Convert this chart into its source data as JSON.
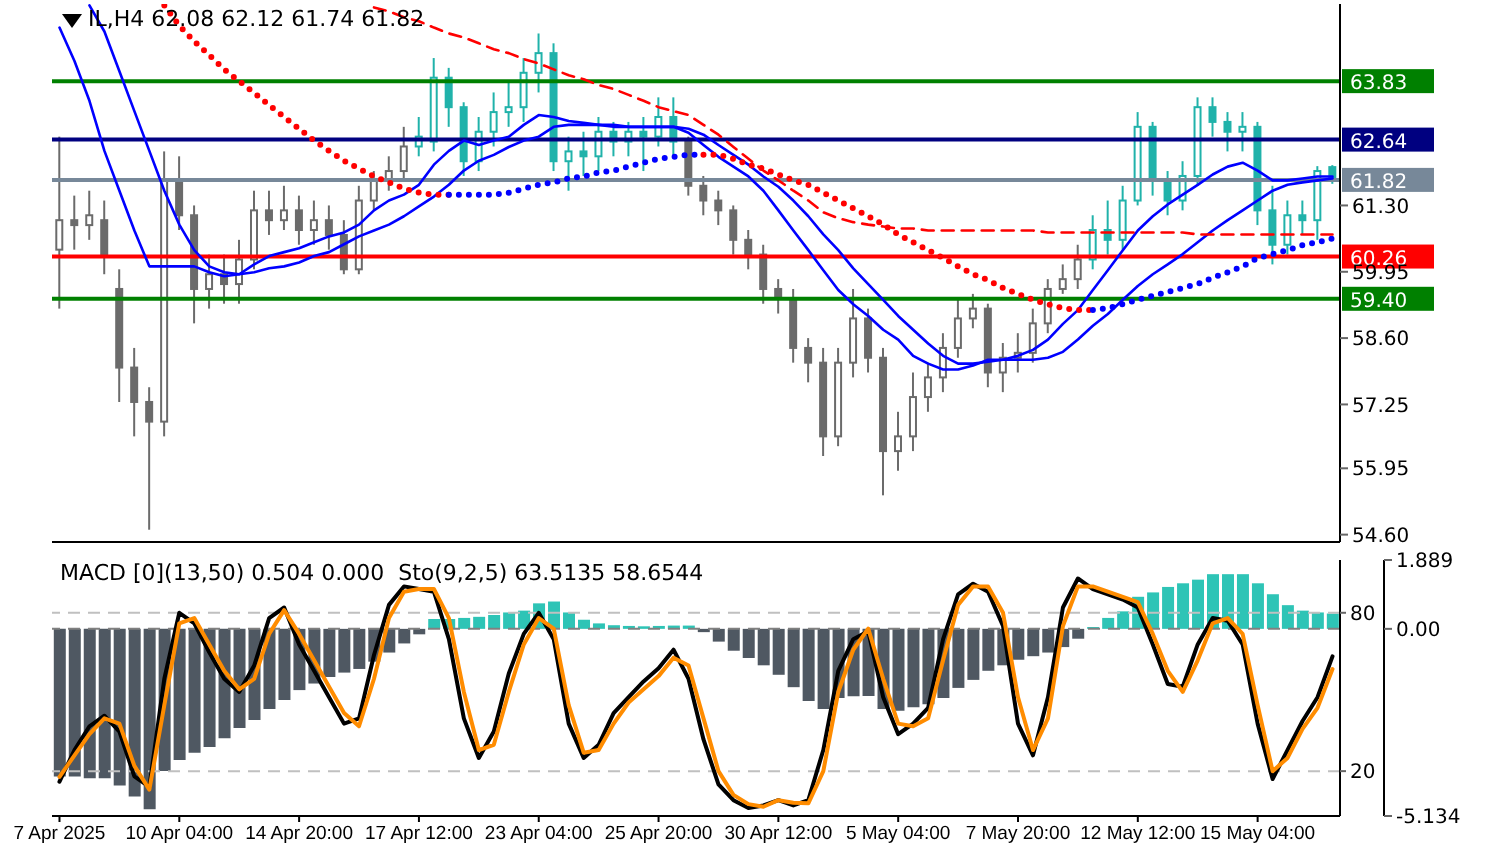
{
  "chart_data": [
    {
      "type": "candlestick",
      "title": "IL,H4 62.08 62.12 61.74 61.82",
      "categories": [
        null,
        null,
        null,
        null,
        null,
        null,
        null,
        null,
        null,
        null,
        null,
        null,
        null,
        null,
        null,
        null,
        null,
        null,
        null,
        null,
        null,
        null,
        null,
        null,
        null,
        null,
        null,
        null,
        null,
        null,
        null,
        null,
        null,
        null,
        null,
        null,
        null,
        null,
        null,
        null,
        null,
        null,
        null,
        null,
        null,
        null,
        null,
        null,
        null,
        null,
        null,
        null,
        null,
        null,
        null,
        null,
        null,
        null,
        null,
        null,
        null,
        null,
        null,
        null,
        null,
        null,
        null,
        null,
        null,
        null,
        null,
        null,
        null,
        null,
        null,
        null,
        null,
        null,
        null,
        null,
        null,
        null,
        null,
        null,
        null,
        null
      ],
      "ohlc": [
        [
          60.4,
          62.7,
          59.2,
          61.0
        ],
        [
          61.0,
          61.5,
          60.4,
          60.9
        ],
        [
          60.9,
          61.6,
          60.6,
          61.1
        ],
        [
          61.0,
          61.4,
          59.9,
          60.3
        ],
        [
          59.6,
          60.0,
          57.3,
          58.0
        ],
        [
          58.0,
          58.4,
          56.6,
          57.3
        ],
        [
          57.3,
          57.6,
          54.7,
          56.9
        ],
        [
          56.9,
          62.4,
          56.6,
          61.8
        ],
        [
          61.8,
          62.3,
          60.8,
          61.1
        ],
        [
          61.1,
          61.3,
          58.9,
          59.6
        ],
        [
          59.6,
          60.3,
          59.2,
          59.9
        ],
        [
          59.9,
          60.3,
          59.3,
          59.7
        ],
        [
          59.7,
          60.6,
          59.3,
          60.2
        ],
        [
          60.2,
          61.6,
          60.0,
          61.2
        ],
        [
          61.2,
          61.6,
          60.7,
          61.0
        ],
        [
          61.0,
          61.7,
          60.8,
          61.2
        ],
        [
          61.2,
          61.5,
          60.5,
          60.8
        ],
        [
          60.8,
          61.4,
          60.5,
          61.0
        ],
        [
          61.0,
          61.3,
          60.4,
          60.7
        ],
        [
          60.7,
          61.0,
          59.9,
          60.0
        ],
        [
          60.0,
          61.7,
          59.9,
          61.4
        ],
        [
          61.4,
          62.0,
          61.2,
          61.8
        ],
        [
          61.8,
          62.3,
          61.6,
          62.0
        ],
        [
          62.0,
          62.9,
          61.8,
          62.5
        ],
        [
          62.5,
          63.1,
          62.3,
          62.7
        ],
        [
          62.6,
          64.3,
          62.4,
          63.9
        ],
        [
          63.9,
          64.1,
          62.9,
          63.3
        ],
        [
          63.3,
          63.4,
          61.9,
          62.2
        ],
        [
          62.2,
          63.1,
          62.0,
          62.8
        ],
        [
          62.8,
          63.6,
          62.5,
          63.2
        ],
        [
          63.2,
          63.8,
          62.9,
          63.3
        ],
        [
          63.3,
          64.3,
          63.0,
          64.0
        ],
        [
          64.0,
          64.8,
          63.6,
          64.4
        ],
        [
          64.4,
          64.6,
          62.0,
          62.2
        ],
        [
          62.2,
          62.7,
          61.6,
          62.4
        ],
        [
          62.4,
          62.8,
          61.9,
          62.3
        ],
        [
          62.3,
          63.1,
          62.0,
          62.8
        ],
        [
          62.8,
          63.0,
          62.3,
          62.6
        ],
        [
          62.6,
          63.0,
          62.3,
          62.8
        ],
        [
          62.8,
          63.1,
          62.0,
          62.7
        ],
        [
          62.7,
          63.5,
          62.5,
          63.1
        ],
        [
          63.1,
          63.5,
          62.3,
          62.6
        ],
        [
          62.6,
          62.7,
          61.5,
          61.7
        ],
        [
          61.7,
          61.9,
          61.1,
          61.4
        ],
        [
          61.4,
          61.6,
          60.9,
          61.2
        ],
        [
          61.2,
          61.3,
          60.3,
          60.6
        ],
        [
          60.6,
          60.8,
          60.0,
          60.3
        ],
        [
          60.3,
          60.5,
          59.3,
          59.6
        ],
        [
          59.6,
          59.8,
          59.1,
          59.4
        ],
        [
          59.4,
          59.6,
          58.1,
          58.4
        ],
        [
          58.4,
          58.6,
          57.7,
          58.1
        ],
        [
          58.1,
          58.4,
          56.2,
          56.6
        ],
        [
          56.6,
          58.4,
          56.4,
          58.1
        ],
        [
          58.1,
          59.6,
          57.8,
          59.0
        ],
        [
          59.0,
          59.2,
          57.9,
          58.2
        ],
        [
          58.2,
          58.4,
          55.4,
          56.3
        ],
        [
          56.3,
          57.1,
          55.9,
          56.6
        ],
        [
          56.6,
          57.9,
          56.3,
          57.4
        ],
        [
          57.4,
          58.1,
          57.1,
          57.8
        ],
        [
          57.8,
          58.7,
          57.5,
          58.4
        ],
        [
          58.4,
          59.4,
          58.2,
          59.0
        ],
        [
          59.0,
          59.5,
          58.8,
          59.2
        ],
        [
          59.2,
          59.3,
          57.6,
          57.9
        ],
        [
          57.9,
          58.5,
          57.5,
          58.2
        ],
        [
          58.2,
          58.7,
          57.9,
          58.3
        ],
        [
          58.3,
          59.2,
          58.1,
          58.9
        ],
        [
          58.9,
          59.8,
          58.7,
          59.6
        ],
        [
          59.6,
          60.1,
          59.5,
          59.8
        ],
        [
          59.8,
          60.5,
          59.6,
          60.2
        ],
        [
          60.2,
          61.1,
          60.0,
          60.8
        ],
        [
          60.8,
          61.4,
          60.3,
          60.6
        ],
        [
          60.6,
          61.7,
          60.4,
          61.4
        ],
        [
          61.4,
          63.2,
          61.3,
          62.9
        ],
        [
          62.9,
          63.0,
          61.5,
          61.8
        ],
        [
          61.8,
          62.0,
          61.1,
          61.4
        ],
        [
          61.4,
          62.2,
          61.2,
          61.9
        ],
        [
          61.9,
          63.5,
          61.7,
          63.3
        ],
        [
          63.3,
          63.5,
          62.7,
          63.0
        ],
        [
          63.0,
          63.2,
          62.4,
          62.8
        ],
        [
          62.8,
          63.2,
          62.4,
          62.9
        ],
        [
          62.9,
          63.0,
          60.9,
          61.2
        ],
        [
          61.2,
          61.7,
          60.1,
          60.5
        ],
        [
          60.5,
          61.4,
          60.3,
          61.1
        ],
        [
          61.1,
          61.4,
          60.7,
          61.0
        ],
        [
          61.0,
          62.1,
          60.6,
          62.0
        ],
        [
          62.08,
          62.12,
          61.74,
          61.82
        ]
      ],
      "colors": [
        "#6b6b6b",
        "#6b6b6b",
        "#6b6b6b",
        "#6b6b6b",
        "#6b6b6b",
        "#6b6b6b",
        "#6b6b6b",
        "#6b6b6b",
        "#6b6b6b",
        "#6b6b6b",
        "#6b6b6b",
        "#6b6b6b",
        "#6b6b6b",
        "#6b6b6b",
        "#6b6b6b",
        "#6b6b6b",
        "#6b6b6b",
        "#6b6b6b",
        "#6b6b6b",
        "#6b6b6b",
        "#6b6b6b",
        "#6b6b6b",
        "#6b6b6b",
        "#6b6b6b",
        "#20b2aa",
        "#20b2aa",
        "#20b2aa",
        "#20b2aa",
        "#20b2aa",
        "#20b2aa",
        "#20b2aa",
        "#20b2aa",
        "#20b2aa",
        "#20b2aa",
        "#20b2aa",
        "#20b2aa",
        "#20b2aa",
        "#20b2aa",
        "#20b2aa",
        "#20b2aa",
        "#20b2aa",
        "#20b2aa",
        "#6b6b6b",
        "#6b6b6b",
        "#6b6b6b",
        "#6b6b6b",
        "#6b6b6b",
        "#6b6b6b",
        "#6b6b6b",
        "#6b6b6b",
        "#6b6b6b",
        "#6b6b6b",
        "#6b6b6b",
        "#6b6b6b",
        "#6b6b6b",
        "#6b6b6b",
        "#6b6b6b",
        "#6b6b6b",
        "#6b6b6b",
        "#6b6b6b",
        "#6b6b6b",
        "#6b6b6b",
        "#6b6b6b",
        "#6b6b6b",
        "#6b6b6b",
        "#6b6b6b",
        "#6b6b6b",
        "#6b6b6b",
        "#6b6b6b",
        "#20b2aa",
        "#20b2aa",
        "#20b2aa",
        "#20b2aa",
        "#20b2aa",
        "#20b2aa",
        "#20b2aa",
        "#20b2aa",
        "#20b2aa",
        "#20b2aa",
        "#20b2aa",
        "#20b2aa",
        "#20b2aa",
        "#20b2aa",
        "#20b2aa",
        "#20b2aa",
        "#20b2aa"
      ],
      "series": [
        {
          "type": "line",
          "color": "#0000ff",
          "values": [
            64.92,
            64.24,
            63.43,
            62.41,
            61.6,
            60.79,
            60.06,
            60.06,
            60.06,
            60.06,
            59.94,
            59.86,
            59.9,
            60.1,
            60.27,
            60.35,
            60.43,
            60.55,
            60.67,
            60.75,
            60.91,
            61.2,
            61.4,
            61.52,
            61.72,
            62.13,
            62.41,
            62.62,
            62.53,
            62.62,
            62.7,
            62.94,
            63.14,
            63.1,
            63.02,
            62.98,
            62.94,
            62.94,
            62.9,
            62.9,
            62.9,
            62.9,
            62.78,
            62.53,
            62.29,
            62.09,
            61.89,
            61.6,
            61.2,
            60.79,
            60.39,
            59.98,
            59.58,
            59.29,
            59.05,
            58.77,
            58.57,
            58.24,
            58.08,
            57.96,
            57.96,
            58.04,
            58.16,
            58.16,
            58.24,
            58.36,
            58.57,
            58.89,
            59.17,
            59.58,
            59.98,
            60.39,
            60.79,
            61.08,
            61.32,
            61.52,
            61.72,
            61.93,
            62.09,
            62.17,
            62.01,
            61.81,
            61.81,
            61.85,
            61.89,
            61.89
          ]
        },
        {
          "type": "line",
          "color": "#0000ff",
          "values": [
            null,
            null,
            65.37,
            64.84,
            64.03,
            63.22,
            62.41,
            61.6,
            60.91,
            60.39,
            60.06,
            59.94,
            59.9,
            59.94,
            60.02,
            60.06,
            60.14,
            60.27,
            60.35,
            60.51,
            60.67,
            60.79,
            60.91,
            61.08,
            61.28,
            61.48,
            61.72,
            62.01,
            62.21,
            62.33,
            62.49,
            62.62,
            62.7,
            62.9,
            62.94,
            62.94,
            62.94,
            62.9,
            62.9,
            62.9,
            62.9,
            62.9,
            62.86,
            62.74,
            62.53,
            62.33,
            62.13,
            61.89,
            61.68,
            61.4,
            61.08,
            60.71,
            60.39,
            60.02,
            59.7,
            59.38,
            59.05,
            58.77,
            58.49,
            58.24,
            58.08,
            58.08,
            58.12,
            58.16,
            58.16,
            58.16,
            58.2,
            58.32,
            58.57,
            58.85,
            59.09,
            59.38,
            59.66,
            59.9,
            60.1,
            60.31,
            60.55,
            60.79,
            61.0,
            61.2,
            61.4,
            61.6,
            61.72,
            61.77,
            61.81,
            61.85
          ]
        },
        {
          "type": "line",
          "color": "#ff0000",
          "line_style": "dotted",
          "values": [
            null,
            null,
            null,
            null,
            null,
            null,
            null,
            65.37,
            64.96,
            64.64,
            64.36,
            64.07,
            63.83,
            63.59,
            63.34,
            63.1,
            62.86,
            62.62,
            62.41,
            62.21,
            62.05,
            61.89,
            61.77,
            61.64,
            61.56,
            61.52,
            61.52,
            null,
            null,
            null,
            null,
            null,
            null,
            null,
            null,
            null,
            null,
            null,
            null,
            null,
            null,
            null,
            null,
            62.33,
            62.33,
            62.25,
            62.13,
            62.05,
            61.93,
            61.81,
            61.72,
            61.56,
            61.4,
            61.24,
            61.08,
            60.91,
            60.71,
            60.55,
            60.39,
            60.23,
            60.06,
            59.9,
            59.78,
            59.62,
            59.5,
            59.38,
            59.29,
            59.21,
            59.17,
            59.17,
            null,
            null,
            null,
            null,
            null,
            null,
            null,
            null,
            null,
            null,
            null,
            null,
            null,
            null,
            null,
            null
          ]
        },
        {
          "type": "line",
          "color": "#0000ff",
          "line_style": "dotted",
          "values": [
            null,
            null,
            null,
            null,
            null,
            null,
            null,
            null,
            null,
            null,
            null,
            null,
            null,
            null,
            null,
            null,
            null,
            null,
            null,
            null,
            null,
            null,
            null,
            null,
            null,
            null,
            61.52,
            61.52,
            61.52,
            61.52,
            61.56,
            61.64,
            61.72,
            61.77,
            61.85,
            61.89,
            61.97,
            62.01,
            62.09,
            62.17,
            62.25,
            62.29,
            62.33,
            62.33,
            null,
            null,
            null,
            null,
            null,
            null,
            null,
            null,
            null,
            null,
            null,
            null,
            null,
            null,
            null,
            null,
            null,
            null,
            null,
            null,
            null,
            null,
            null,
            null,
            null,
            59.17,
            59.21,
            59.29,
            59.38,
            59.46,
            59.54,
            59.62,
            59.7,
            59.83,
            59.94,
            60.06,
            60.23,
            60.31,
            60.39,
            60.49,
            60.55,
            60.63
          ]
        },
        {
          "type": "line",
          "color": "#ff0000",
          "line_style": "dashed",
          "values": [
            null,
            null,
            null,
            null,
            null,
            null,
            null,
            null,
            null,
            null,
            null,
            null,
            null,
            null,
            null,
            null,
            null,
            null,
            null,
            null,
            null,
            65.33,
            65.25,
            65.13,
            65.05,
            64.92,
            64.8,
            64.72,
            64.6,
            64.48,
            64.4,
            64.28,
            64.19,
            64.07,
            63.95,
            63.87,
            63.75,
            63.67,
            63.55,
            63.43,
            63.3,
            63.22,
            63.14,
            62.94,
            62.74,
            62.49,
            62.25,
            62.01,
            61.81,
            61.6,
            61.4,
            61.16,
            61.04,
            60.96,
            60.91,
            60.87,
            60.83,
            60.83,
            60.79,
            60.79,
            60.79,
            60.79,
            60.79,
            60.79,
            60.79,
            60.79,
            60.75,
            60.75,
            60.75,
            60.75,
            60.75,
            60.75,
            60.75,
            60.75,
            60.75,
            60.75,
            60.71,
            60.71,
            60.71,
            60.71,
            60.71,
            60.71,
            60.71,
            60.71,
            60.71,
            60.71
          ]
        }
      ],
      "ylim": [
        54.45,
        65.4
      ],
      "yticks": [
        {
          "value": 54.6,
          "label": "54.60"
        },
        55.95,
        57.25,
        {
          "value": 58.6,
          "label": "58.60"
        },
        59.95,
        {
          "value": 61.3,
          "label": "61.30"
        }
      ],
      "ref_lines": [
        {
          "axis": "y",
          "value": 63.83,
          "label": "63.83",
          "color": "#008000"
        },
        {
          "axis": "y",
          "value": 62.64,
          "label": "62.64",
          "color": "#000080"
        },
        {
          "axis": "y",
          "value": 61.82,
          "label": "61.82",
          "color": "#778899"
        },
        {
          "axis": "y",
          "value": 60.26,
          "label": "60.26",
          "color": "#ff0000"
        },
        {
          "axis": "y",
          "value": 59.4,
          "label": "59.40",
          "color": "#008000"
        }
      ],
      "tick_labels": "y"
    },
    {
      "type": "bar",
      "title": "MACD [0](13,50) 0.504 0.000  Sto(9,2,5) 63.5135 58.6544",
      "categories": [
        "7 Apr 2025",
        null,
        null,
        null,
        null,
        null,
        null,
        null,
        "10 Apr 04:00",
        null,
        null,
        null,
        null,
        null,
        null,
        null,
        "14 Apr 20:00",
        null,
        null,
        null,
        null,
        null,
        null,
        null,
        "17 Apr 12:00",
        null,
        null,
        null,
        null,
        null,
        null,
        null,
        "23 Apr 04:00",
        null,
        null,
        null,
        null,
        null,
        null,
        null,
        "25 Apr 20:00",
        null,
        null,
        null,
        null,
        null,
        null,
        null,
        "30 Apr 12:00",
        null,
        null,
        null,
        null,
        null,
        null,
        null,
        "5 May 04:00",
        null,
        null,
        null,
        null,
        null,
        null,
        null,
        "7 May 20:00",
        null,
        null,
        null,
        null,
        null,
        null,
        null,
        "12 May 12:00",
        null,
        null,
        null,
        null,
        null,
        null,
        null,
        "15 May 04:00",
        null,
        null,
        null,
        null,
        null
      ],
      "series": [
        {
          "type": "bar",
          "colors": [
            "#4f5862",
            "#4f5862",
            "#4f5862",
            "#4f5862",
            "#4f5862",
            "#4f5862",
            "#4f5862",
            "#4f5862",
            "#4f5862",
            "#4f5862",
            "#4f5862",
            "#4f5862",
            "#4f5862",
            "#4f5862",
            "#4f5862",
            "#4f5862",
            "#4f5862",
            "#4f5862",
            "#4f5862",
            "#4f5862",
            "#4f5862",
            "#4f5862",
            "#4f5862",
            "#4f5862",
            "#4f5862",
            "#2ec4b6",
            "#2ec4b6",
            "#2ec4b6",
            "#2ec4b6",
            "#2ec4b6",
            "#2ec4b6",
            "#2ec4b6",
            "#2ec4b6",
            "#2ec4b6",
            "#2ec4b6",
            "#2ec4b6",
            "#2ec4b6",
            "#2ec4b6",
            "#2ec4b6",
            "#2ec4b6",
            "#2ec4b6",
            "#2ec4b6",
            "#2ec4b6",
            "#4f5862",
            "#4f5862",
            "#4f5862",
            "#4f5862",
            "#4f5862",
            "#4f5862",
            "#4f5862",
            "#4f5862",
            "#4f5862",
            "#4f5862",
            "#4f5862",
            "#4f5862",
            "#4f5862",
            "#4f5862",
            "#4f5862",
            "#4f5862",
            "#4f5862",
            "#4f5862",
            "#4f5862",
            "#4f5862",
            "#4f5862",
            "#4f5862",
            "#4f5862",
            "#4f5862",
            "#4f5862",
            "#4f5862",
            "#2ec4b6",
            "#2ec4b6",
            "#2ec4b6",
            "#2ec4b6",
            "#2ec4b6",
            "#2ec4b6",
            "#2ec4b6",
            "#2ec4b6",
            "#2ec4b6",
            "#2ec4b6",
            "#2ec4b6",
            "#2ec4b6",
            "#2ec4b6",
            "#2ec4b6",
            "#2ec4b6",
            "#2ec4b6",
            "#2ec4b6"
          ],
          "values": [
            -4.05,
            -4.05,
            -4.1,
            -4.1,
            -4.3,
            -4.6,
            -4.95,
            -3.9,
            -3.6,
            -3.4,
            -3.24,
            -3.0,
            -2.72,
            -2.5,
            -2.2,
            -1.95,
            -1.68,
            -1.5,
            -1.32,
            -1.2,
            -1.1,
            -0.9,
            -0.65,
            -0.4,
            -0.15,
            0.27,
            0.27,
            0.3,
            0.33,
            0.38,
            0.45,
            0.5,
            0.7,
            0.75,
            0.45,
            0.25,
            0.15,
            0.1,
            0.08,
            0.07,
            0.08,
            0.09,
            0.09,
            -0.09,
            -0.35,
            -0.6,
            -0.8,
            -1.0,
            -1.26,
            -1.6,
            -1.98,
            -2.2,
            -1.9,
            -1.85,
            -1.84,
            -2.2,
            -2.25,
            -2.15,
            -2.07,
            -1.9,
            -1.62,
            -1.4,
            -1.15,
            -1.0,
            -0.85,
            -0.75,
            -0.65,
            -0.5,
            -0.27,
            0.05,
            0.3,
            0.48,
            0.88,
            1.0,
            1.15,
            1.25,
            1.35,
            1.5,
            1.5,
            1.5,
            1.25,
            0.95,
            0.65,
            0.5,
            0.45,
            0.42
          ]
        },
        {
          "type": "line",
          "axis": "y2",
          "color": "#000000",
          "values": [
            16,
            28,
            37,
            41,
            35,
            18,
            14,
            55,
            80,
            76,
            65,
            55,
            50,
            60,
            78,
            82,
            68,
            58,
            48,
            38,
            40,
            64,
            83,
            90,
            89,
            88,
            70,
            40,
            25,
            35,
            57,
            72,
            80,
            70,
            38,
            25,
            30,
            42,
            48,
            54,
            59,
            66,
            55,
            32,
            15,
            9,
            6,
            7,
            9,
            7,
            9,
            28,
            58,
            70,
            73,
            48,
            34,
            38,
            44,
            70,
            87,
            91,
            88,
            75,
            38,
            26,
            48,
            82,
            93,
            89,
            87,
            85,
            82,
            68,
            53,
            52,
            68,
            78,
            77,
            68,
            38,
            17,
            28,
            39,
            48,
            63.5
          ]
        },
        {
          "type": "line",
          "axis": "y2",
          "color": "#ff8c00",
          "values": [
            17.8,
            26,
            34,
            40,
            38,
            22,
            13,
            45,
            76,
            78,
            68,
            58,
            51,
            55,
            72,
            81,
            72,
            62,
            52,
            42,
            37,
            55,
            78,
            88,
            89,
            89,
            78,
            50,
            28,
            30,
            50,
            68,
            78,
            74,
            45,
            27,
            28,
            38,
            46,
            51,
            56,
            63,
            60,
            40,
            20,
            11,
            7.5,
            6.5,
            9,
            8,
            7.8,
            20,
            50,
            66,
            74,
            55,
            38,
            37,
            40,
            62,
            83,
            90,
            90,
            80,
            48,
            28,
            40,
            75,
            90,
            90,
            88,
            86,
            84,
            72,
            58,
            50,
            62,
            76,
            78,
            72,
            45,
            20,
            25,
            36,
            44,
            58.7
          ]
        }
      ],
      "ylim": [
        -5.134,
        1.889
      ],
      "yticks": [
        1.889,
        {
          "value": 0,
          "label": "0.00"
        },
        -5.134
      ],
      "y2lim": [
        3,
        100
      ],
      "y2ticks": [
        80,
        20
      ],
      "ref_lines": [
        {
          "axis": "y",
          "value": 0,
          "color": "#808080",
          "line_style": "dashed"
        },
        {
          "axis": "y2",
          "value": 80,
          "color": "#c0c0c0",
          "line_style": "dashed"
        },
        {
          "axis": "y2",
          "value": 20,
          "color": "#c0c0c0",
          "line_style": "dashed"
        }
      ]
    }
  ]
}
